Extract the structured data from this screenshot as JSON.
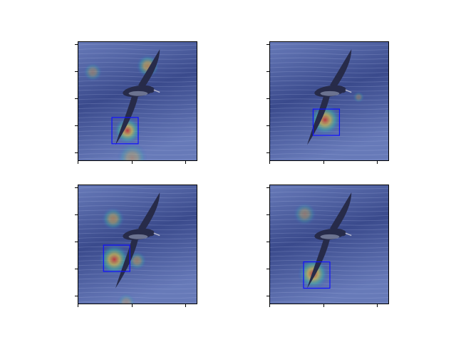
{
  "figure": {
    "description_title": "",
    "colors": {
      "background": "#ffffff",
      "frame": "#000000",
      "sea_dark": "#3c4c86",
      "sea_light": "#6f82b8",
      "bird_body": "#26283a",
      "bird_belly": "#aab0c0",
      "box": "#1010ff"
    }
  },
  "chart_data": [
    {
      "type": "heatmap",
      "panel": "top-left",
      "title": "",
      "xlabel": "",
      "ylabel": "",
      "x_ticks": 3,
      "y_ticks": 5,
      "box": {
        "x": 0.28,
        "y": 0.63,
        "w": 0.22,
        "h": 0.22
      },
      "hotspots": [
        {
          "x": 0.41,
          "y": 0.74,
          "intensity": 1.0,
          "spread": 0.07
        },
        {
          "x": 0.58,
          "y": 0.2,
          "intensity": 0.75,
          "spread": 0.06
        },
        {
          "x": 0.12,
          "y": 0.25,
          "intensity": 0.45,
          "spread": 0.05
        },
        {
          "x": 0.45,
          "y": 0.97,
          "intensity": 0.5,
          "spread": 0.08
        }
      ]
    },
    {
      "type": "heatmap",
      "panel": "top-right",
      "title": "",
      "xlabel": "",
      "ylabel": "",
      "x_ticks": 3,
      "y_ticks": 5,
      "box": {
        "x": 0.36,
        "y": 0.56,
        "w": 0.22,
        "h": 0.22
      },
      "hotspots": [
        {
          "x": 0.46,
          "y": 0.65,
          "intensity": 1.0,
          "spread": 0.08
        },
        {
          "x": 0.74,
          "y": 0.46,
          "intensity": 0.4,
          "spread": 0.03
        }
      ]
    },
    {
      "type": "heatmap",
      "panel": "bottom-left",
      "title": "",
      "xlabel": "",
      "ylabel": "",
      "x_ticks": 3,
      "y_ticks": 5,
      "box": {
        "x": 0.21,
        "y": 0.5,
        "w": 0.22,
        "h": 0.22
      },
      "hotspots": [
        {
          "x": 0.3,
          "y": 0.62,
          "intensity": 1.0,
          "spread": 0.08
        },
        {
          "x": 0.29,
          "y": 0.28,
          "intensity": 0.65,
          "spread": 0.06
        },
        {
          "x": 0.49,
          "y": 0.63,
          "intensity": 0.55,
          "spread": 0.05
        },
        {
          "x": 0.4,
          "y": 0.98,
          "intensity": 0.4,
          "spread": 0.05
        }
      ]
    },
    {
      "type": "heatmap",
      "panel": "bottom-right",
      "title": "",
      "xlabel": "",
      "ylabel": "",
      "x_ticks": 3,
      "y_ticks": 5,
      "box": {
        "x": 0.28,
        "y": 0.64,
        "w": 0.22,
        "h": 0.22
      },
      "hotspots": [
        {
          "x": 0.36,
          "y": 0.74,
          "intensity": 1.0,
          "spread": 0.08
        },
        {
          "x": 0.29,
          "y": 0.24,
          "intensity": 0.5,
          "spread": 0.06
        }
      ]
    }
  ]
}
